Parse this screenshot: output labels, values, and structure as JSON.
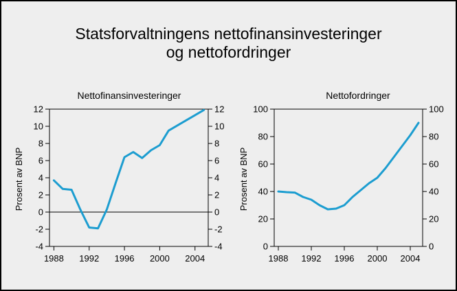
{
  "title": {
    "line1": "Statsforvaltningens nettofinansinvesteringer",
    "line2": "og nettofordringer"
  },
  "colors": {
    "background": "#eeeeee",
    "line": "#1c9dd0",
    "axis": "#000000"
  },
  "chart_data": [
    {
      "type": "line",
      "title": "Nettofinansinvesteringer",
      "xlabel": "",
      "ylabel": "Prosent av BNP",
      "ylabel_right": "",
      "xlim": [
        1987.5,
        2005.5
      ],
      "ylim": [
        -4,
        12
      ],
      "xticks": [
        1988,
        1992,
        1996,
        2000,
        2004
      ],
      "yticks": [
        -4,
        -2,
        0,
        2,
        4,
        6,
        8,
        10,
        12
      ],
      "zero_line": true,
      "top_line": true,
      "series": [
        {
          "name": "Nettofinansinvesteringer",
          "x": [
            1988,
            1989,
            1990,
            1991,
            1992,
            1993,
            1994,
            1995,
            1996,
            1997,
            1998,
            1999,
            2000,
            2001,
            2002,
            2003,
            2004,
            2005
          ],
          "values": [
            3.7,
            2.7,
            2.6,
            0.3,
            -1.8,
            -1.9,
            0.3,
            3.4,
            6.4,
            7.0,
            6.3,
            7.2,
            7.8,
            9.5,
            10.1,
            10.7,
            11.3,
            11.9
          ]
        }
      ]
    },
    {
      "type": "line",
      "title": "Nettofordringer",
      "xlabel": "",
      "ylabel": "Prosent av BNP",
      "ylabel_right": "",
      "xlim": [
        1987.5,
        2005.5
      ],
      "ylim": [
        0,
        100
      ],
      "xticks": [
        1988,
        1992,
        1996,
        2000,
        2004
      ],
      "yticks": [
        0,
        20,
        40,
        60,
        80,
        100
      ],
      "zero_line": false,
      "top_line": true,
      "series": [
        {
          "name": "Nettofordringer",
          "x": [
            1988,
            1989,
            1990,
            1991,
            1992,
            1993,
            1994,
            1995,
            1996,
            1997,
            1998,
            1999,
            2000,
            2001,
            2002,
            2003,
            2004,
            2005
          ],
          "values": [
            40,
            39.5,
            39.2,
            36,
            34,
            30,
            27,
            27.5,
            30,
            36,
            41,
            46,
            50,
            57,
            65,
            73,
            81,
            90
          ]
        }
      ]
    }
  ]
}
